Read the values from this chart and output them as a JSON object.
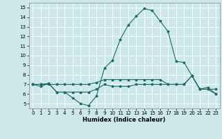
{
  "xlabel": "Humidex (Indice chaleur)",
  "bg_color": "#cce8e8",
  "grid_color": "#ffffff",
  "line_color": "#1a6b6b",
  "xlim": [
    -0.5,
    23.5
  ],
  "ylim": [
    4.5,
    15.5
  ],
  "yticks": [
    5,
    6,
    7,
    8,
    9,
    10,
    11,
    12,
    13,
    14,
    15
  ],
  "xticks": [
    0,
    1,
    2,
    3,
    4,
    5,
    6,
    7,
    8,
    9,
    10,
    11,
    12,
    13,
    14,
    15,
    16,
    17,
    18,
    19,
    20,
    21,
    22,
    23
  ],
  "line1_x": [
    0,
    1,
    2,
    3,
    4,
    5,
    6,
    7,
    8,
    9,
    10,
    11,
    12,
    13,
    14,
    15,
    16,
    17,
    18,
    19,
    20,
    21,
    22,
    23
  ],
  "line1_y": [
    7.0,
    6.8,
    7.1,
    6.2,
    6.2,
    5.6,
    5.0,
    4.8,
    5.8,
    8.7,
    9.5,
    11.7,
    13.2,
    14.1,
    14.9,
    14.7,
    13.6,
    12.5,
    9.4,
    9.3,
    7.9,
    6.5,
    6.5,
    6.0
  ],
  "line2_x": [
    0,
    1,
    2,
    3,
    4,
    5,
    6,
    7,
    8,
    9,
    10,
    11,
    12,
    13,
    14,
    15,
    16,
    17,
    18,
    19,
    20,
    21,
    22,
    23
  ],
  "line2_y": [
    7.0,
    7.0,
    7.0,
    7.0,
    7.0,
    7.0,
    7.0,
    7.0,
    7.2,
    7.5,
    7.5,
    7.5,
    7.5,
    7.5,
    7.5,
    7.5,
    7.5,
    7.0,
    7.0,
    7.0,
    7.9,
    6.5,
    6.5,
    6.5
  ],
  "line3_x": [
    0,
    1,
    2,
    3,
    4,
    5,
    6,
    7,
    8,
    9,
    10,
    11,
    12,
    13,
    14,
    15,
    16,
    17,
    18,
    19,
    20,
    21,
    22,
    23
  ],
  "line3_y": [
    7.0,
    7.0,
    7.1,
    6.2,
    6.2,
    6.2,
    6.2,
    6.2,
    6.5,
    7.0,
    6.8,
    6.8,
    6.8,
    7.0,
    7.0,
    7.0,
    7.0,
    7.0,
    7.0,
    7.0,
    7.9,
    6.5,
    6.7,
    6.0
  ],
  "xlabel_fontsize": 6,
  "tick_fontsize": 5,
  "linewidth": 0.8,
  "markersize": 2.5
}
